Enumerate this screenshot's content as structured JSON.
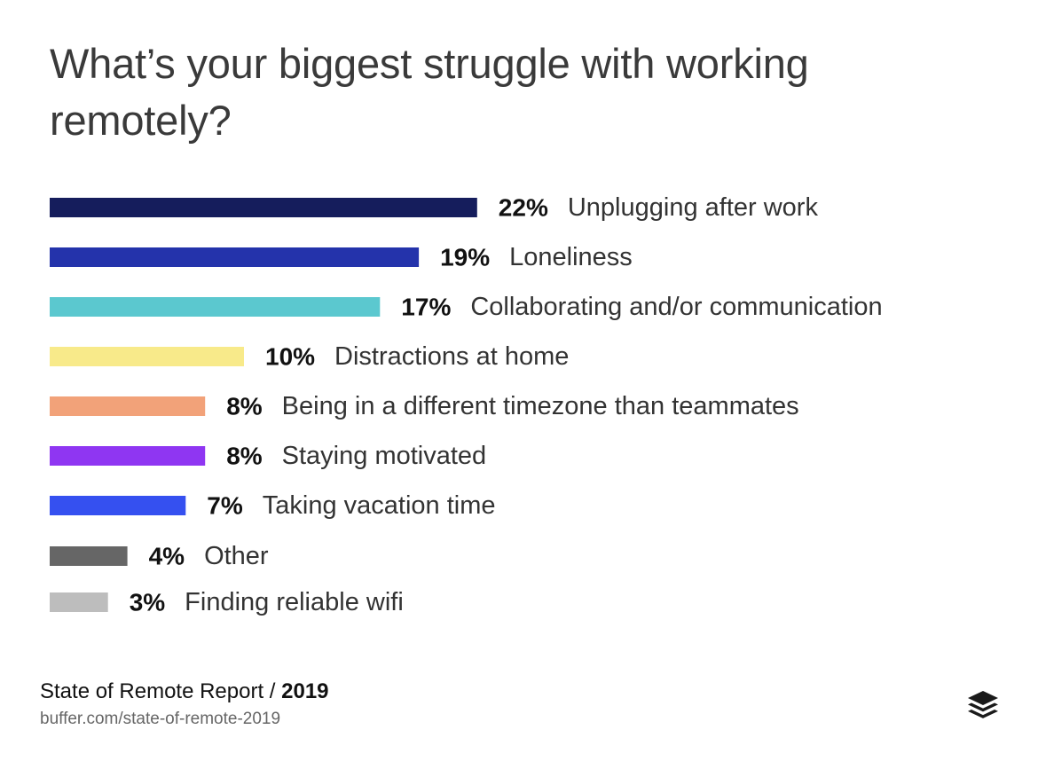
{
  "chart_data": {
    "type": "bar",
    "orientation": "horizontal",
    "title": "What’s your biggest struggle with working remotely?",
    "categories": [
      "Unplugging after work",
      "Loneliness",
      "Collaborating and/or communication",
      "Distractions at home",
      "Being in a different timezone than teammates",
      "Staying motivated",
      "Taking vacation time",
      "Other",
      "Finding reliable wifi"
    ],
    "values": [
      22,
      19,
      17,
      10,
      8,
      8,
      7,
      4,
      3
    ],
    "value_labels": [
      "22%",
      "19%",
      "17%",
      "10%",
      "8%",
      "8%",
      "7%",
      "4%",
      "3%"
    ],
    "colors": [
      "#151d5c",
      "#2433ab",
      "#5bc8cf",
      "#f8ea8a",
      "#f2a279",
      "#8f36f2",
      "#3550f0",
      "#666666",
      "#bdbdbd"
    ],
    "xlabel": "",
    "ylabel": "",
    "grid": false,
    "legend": "none"
  },
  "footer": {
    "source_name": "State of Remote Report / ",
    "source_year": "2019",
    "source_url": "buffer.com/state-of-remote-2019"
  },
  "logo": {
    "icon": "buffer-stack-icon",
    "color": "#1a1a1a"
  }
}
